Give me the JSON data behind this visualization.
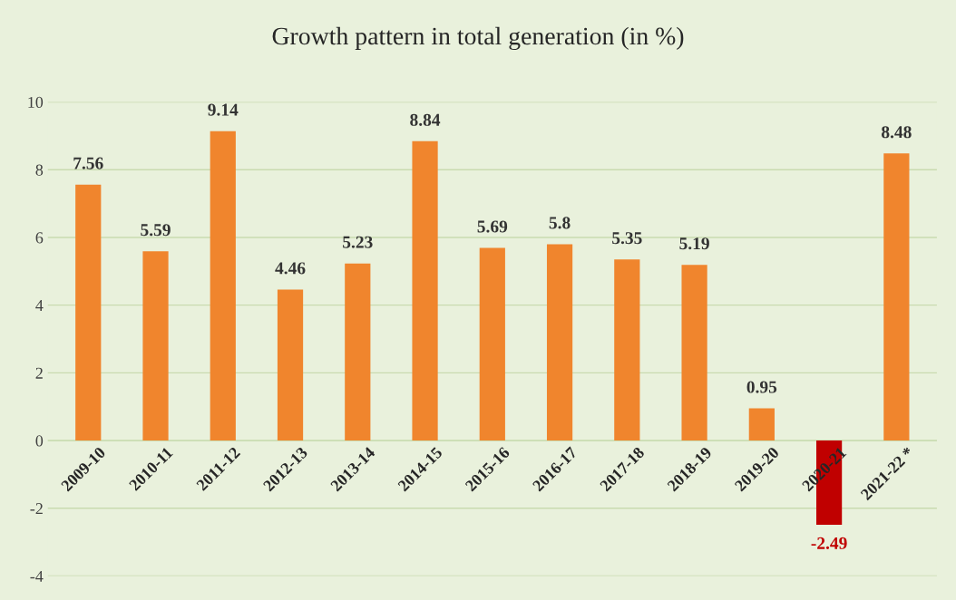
{
  "chart_data": {
    "type": "bar",
    "title": "Growth pattern in total generation (in %)",
    "categories": [
      "2009-10",
      "2010-11",
      "2011-12",
      "2012-13",
      "2013-14",
      "2014-15",
      "2015-16",
      "2016-17",
      "2017-18",
      "2018-19",
      "2019-20",
      "2020-21",
      "2021-22 *"
    ],
    "values": [
      7.56,
      5.59,
      9.14,
      4.46,
      5.23,
      8.84,
      5.69,
      5.8,
      5.35,
      5.19,
      0.95,
      -2.49,
      8.48
    ],
    "colors": [
      "#f0852d",
      "#f0852d",
      "#f0852d",
      "#f0852d",
      "#f0852d",
      "#f0852d",
      "#f0852d",
      "#f0852d",
      "#f0852d",
      "#f0852d",
      "#f0852d",
      "#c00000",
      "#f0852d"
    ],
    "ylim": [
      -4,
      10
    ],
    "yticks": [
      -4,
      -2,
      0,
      2,
      4,
      6,
      8,
      10
    ],
    "grid": "y",
    "data_labels": true,
    "legend": false
  }
}
